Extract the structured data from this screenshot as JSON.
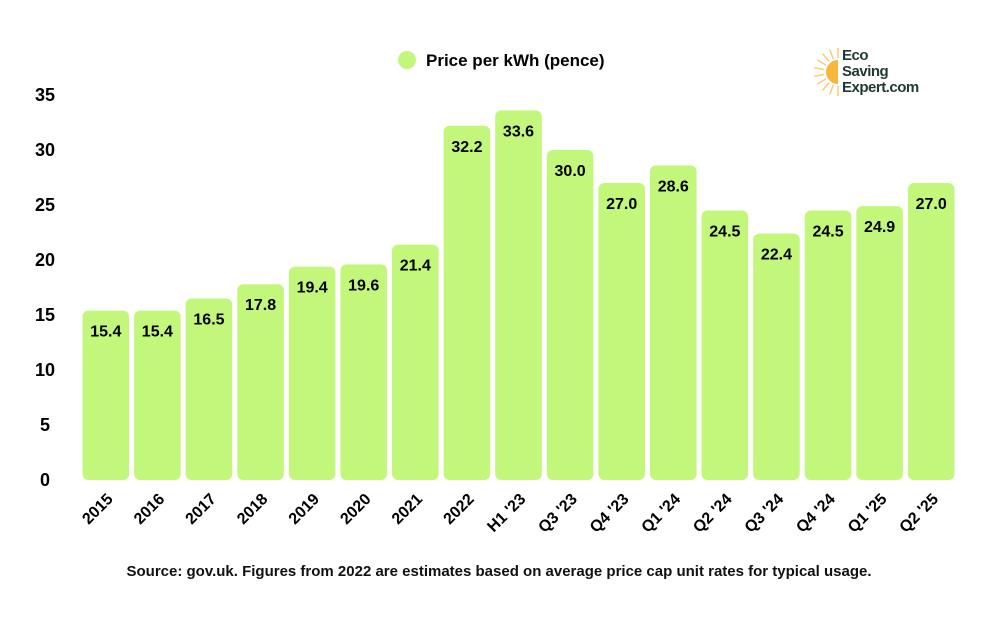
{
  "chart_data": {
    "type": "bar",
    "title": "",
    "legend": {
      "label": "Price per kWh (pence)",
      "placement": "top-center"
    },
    "categories": [
      "2015",
      "2016",
      "2017",
      "2018",
      "2019",
      "2020",
      "2021",
      "2022",
      "H1 '23",
      "Q3 '23",
      "Q4 '23",
      "Q1 '24",
      "Q2 '24",
      "Q3 '24",
      "Q4 '24",
      "Q1 '25",
      "Q2 '25"
    ],
    "series": [
      {
        "name": "Price per kWh (pence)",
        "values": [
          15.4,
          15.4,
          16.5,
          17.8,
          19.4,
          19.6,
          21.4,
          32.2,
          33.6,
          30.0,
          27.0,
          28.6,
          24.5,
          22.4,
          24.5,
          24.9,
          27.0
        ]
      }
    ],
    "ylim": [
      0,
      35
    ],
    "yticks": [
      0,
      5,
      10,
      15,
      20,
      25,
      30,
      35
    ],
    "grid": false,
    "data_labels": true,
    "bar_color": "#c3f77c"
  },
  "source": "Source: gov.uk. Figures from 2022 are estimates based on average price cap unit rates for typical usage.",
  "logo": {
    "line1": "Eco",
    "line2": "Saving",
    "line3": "Expert.com",
    "text_color": "#1d3a33",
    "sun_color": "#f6b73c"
  }
}
